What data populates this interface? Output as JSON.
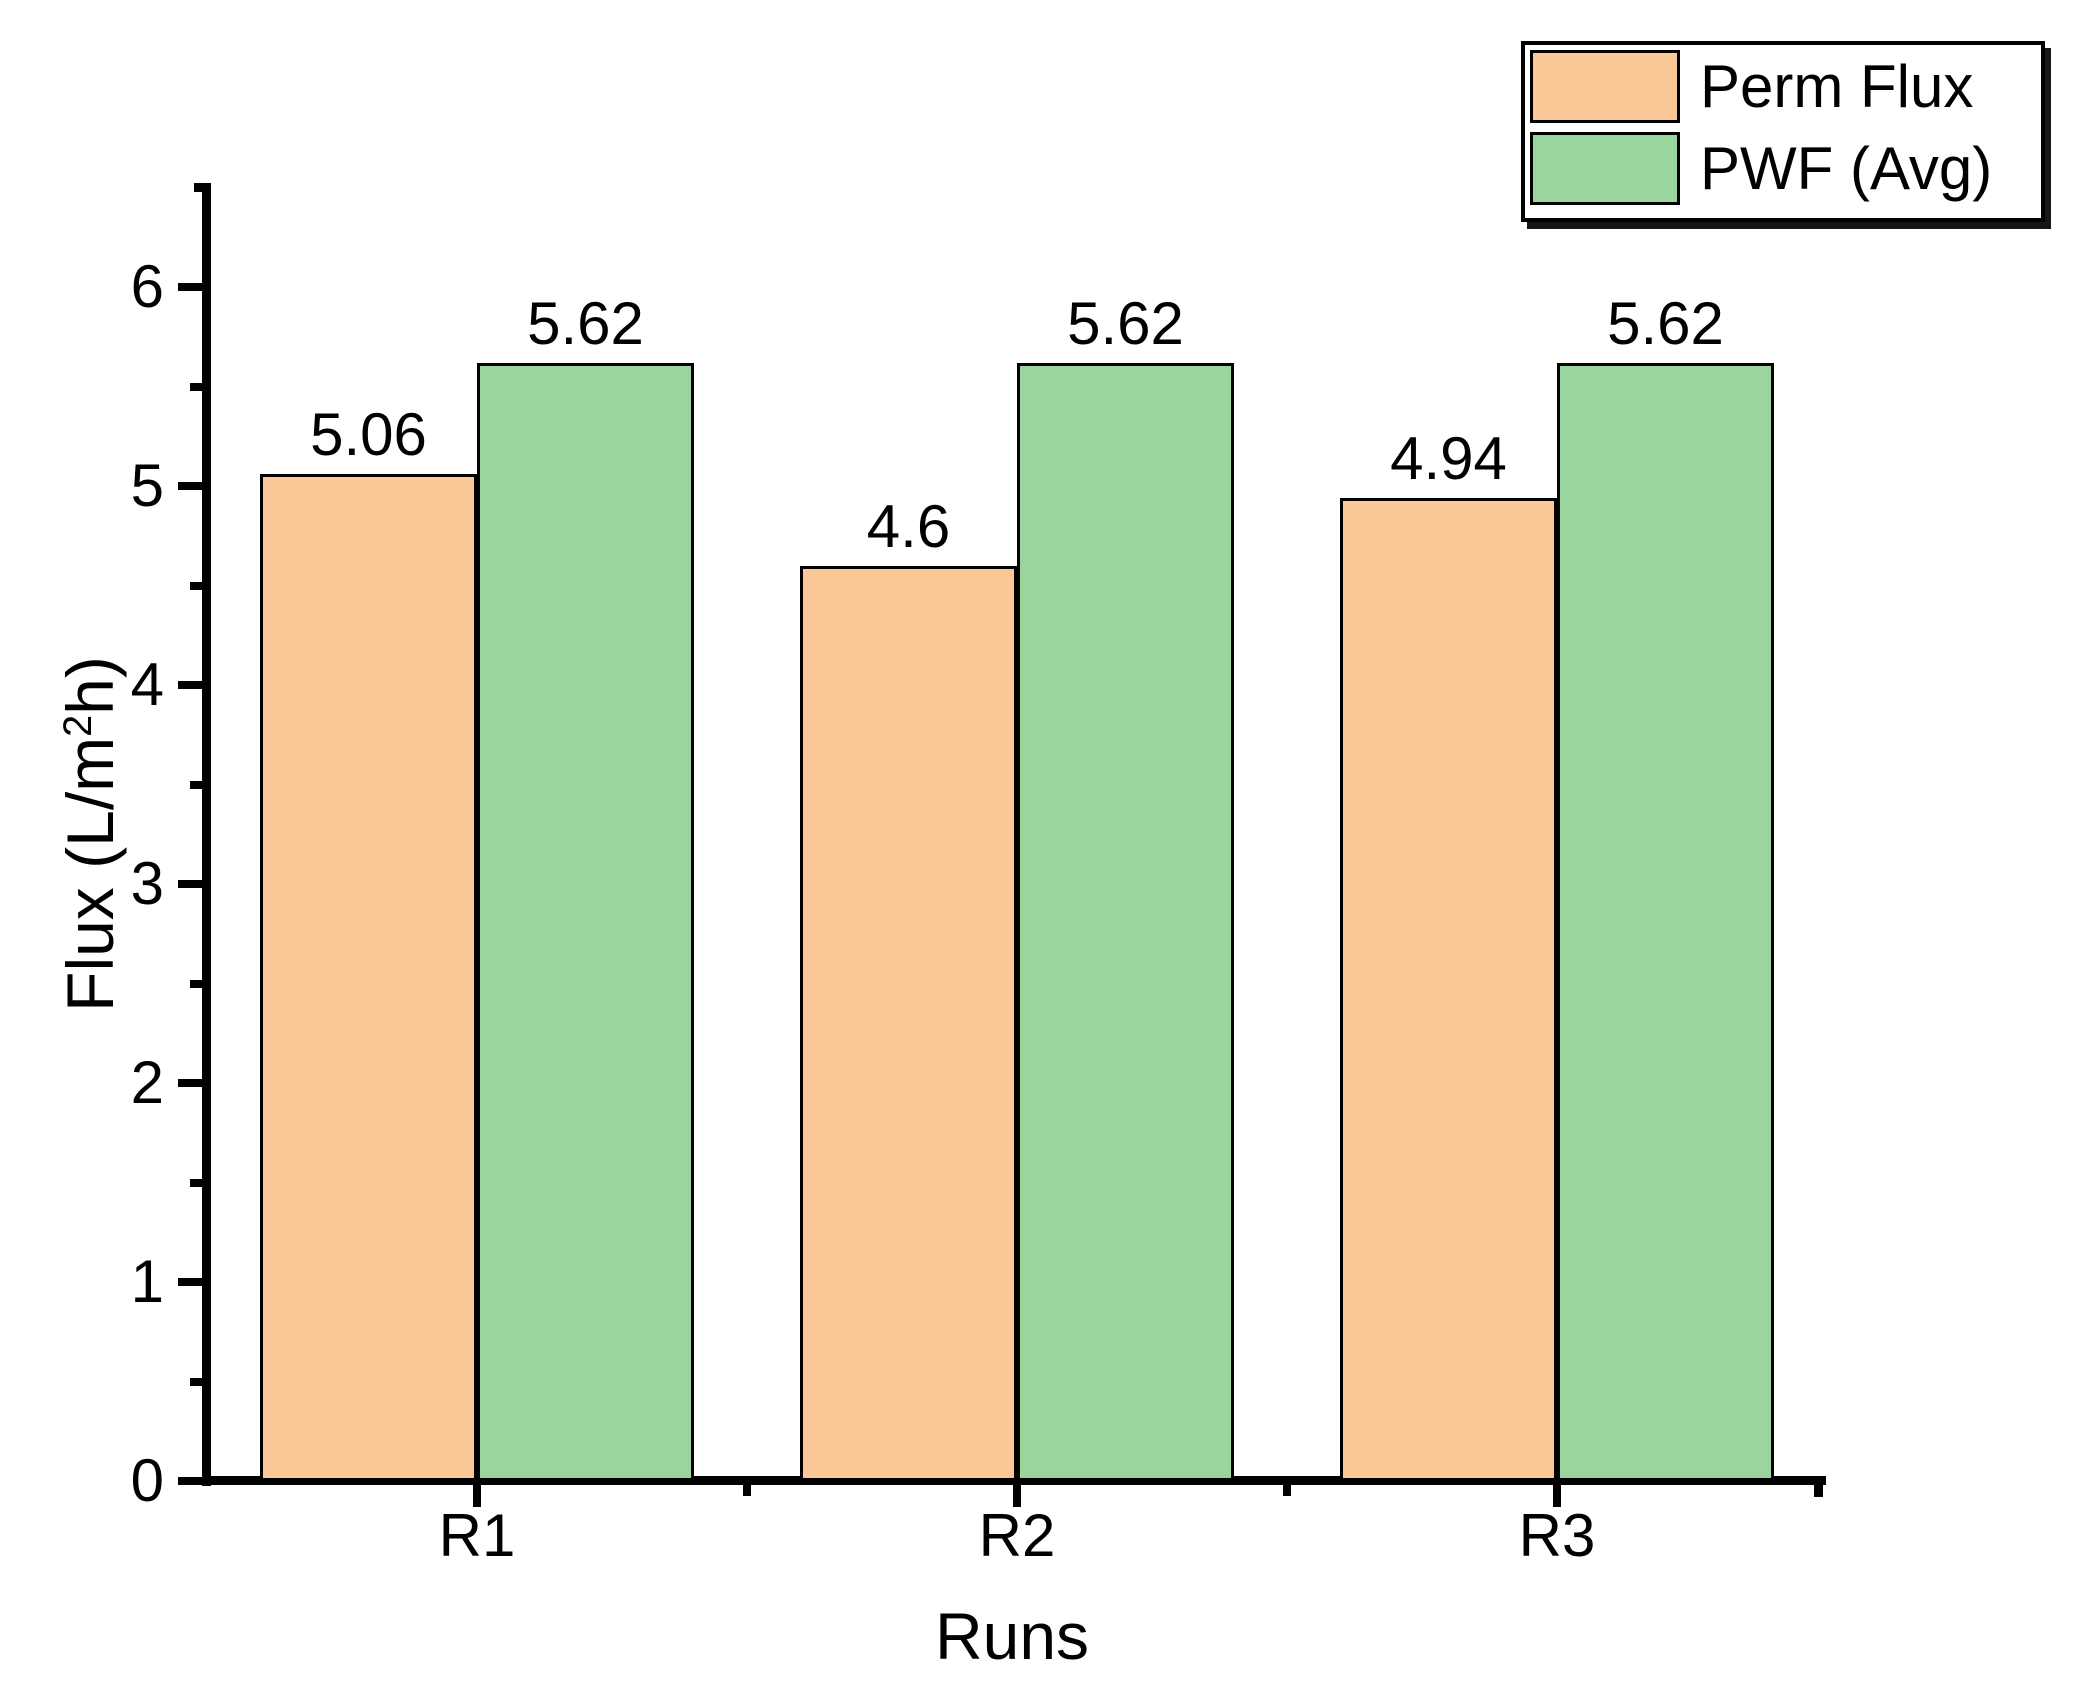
{
  "chart_data": {
    "type": "bar",
    "categories": [
      "R1",
      "R2",
      "R3"
    ],
    "series": [
      {
        "name": "Perm Flux",
        "color": "#FAC897",
        "values": [
          5.06,
          4.6,
          4.94
        ],
        "labels": [
          "5.06",
          "4.6",
          "4.94"
        ]
      },
      {
        "name": "PWF (Avg)",
        "color": "#9AD59E",
        "values": [
          5.62,
          5.62,
          5.62
        ],
        "labels": [
          "5.62",
          "5.62",
          "5.62"
        ]
      }
    ],
    "title": "",
    "xlabel": "Runs",
    "ylabel": "Flux (L/m²h)",
    "ylabel_parts": {
      "pre": "Flux (L/m",
      "sup": "2",
      "post": "h)"
    },
    "ylim": [
      0,
      6.5
    ],
    "yticks": [
      0,
      1,
      2,
      3,
      4,
      5,
      6
    ],
    "ytick_labels": [
      "0",
      "1",
      "2",
      "3",
      "4",
      "5",
      "6"
    ],
    "yminor_ticks": [
      0.5,
      1.5,
      2.5,
      3.5,
      4.5,
      5.5
    ],
    "grid": false,
    "legend_position": "top-right",
    "bar_edge_color": "#000000",
    "axis_color": "#000000"
  }
}
